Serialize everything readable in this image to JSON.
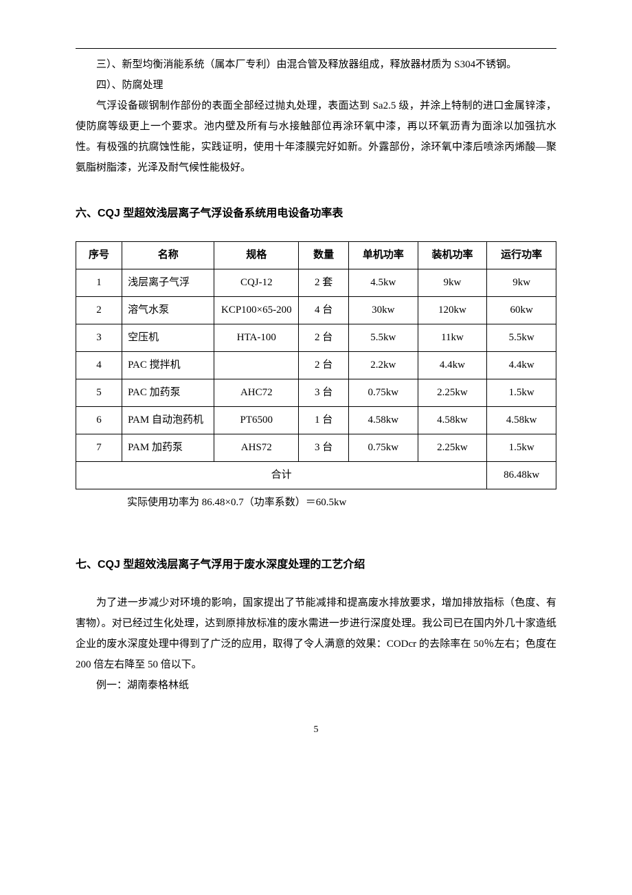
{
  "paragraphs": {
    "p1": "三）、新型均衡消能系统（属本厂专利）由混合管及释放器组成，释放器材质为 S304不锈钢。",
    "p2": "四）、防腐处理",
    "p3": "气浮设备碳钢制作部份的表面全部经过抛丸处理，表面达到 Sa2.5 级，并涂上特制的进口金属锌漆，使防腐等级更上一个要求。池内壁及所有与水接触部位再涂环氧中漆，再以环氧沥青为面涂以加强抗水性。有极强的抗腐蚀性能，实践证明，使用十年漆膜完好如新。外露部份，涂环氧中漆后喷涂丙烯酸—聚氨脂树脂漆，光泽及耐气候性能极好。"
  },
  "section6_title": "六、CQJ 型超效浅层离子气浮设备系统用电设备功率表",
  "table": {
    "headers": {
      "seq": "序号",
      "name": "名称",
      "spec": "规格",
      "qty": "数量",
      "unit_power": "单机功率",
      "installed_power": "装机功率",
      "run_power": "运行功率"
    },
    "rows": [
      {
        "seq": "1",
        "name": "浅层离子气浮",
        "spec": "CQJ-12",
        "qty": "2 套",
        "unit": "4.5kw",
        "installed": "9kw",
        "run": "9kw"
      },
      {
        "seq": "2",
        "name": "溶气水泵",
        "spec": "KCP100×65-200",
        "qty": "4 台",
        "unit": "30kw",
        "installed": "120kw",
        "run": "60kw"
      },
      {
        "seq": "3",
        "name": "空压机",
        "spec": "HTA-100",
        "qty": "2 台",
        "unit": "5.5kw",
        "installed": "11kw",
        "run": "5.5kw"
      },
      {
        "seq": "4",
        "name": "PAC 搅拌机",
        "spec": "",
        "qty": "2 台",
        "unit": "2.2kw",
        "installed": "4.4kw",
        "run": "4.4kw"
      },
      {
        "seq": "5",
        "name": "PAC 加药泵",
        "spec": "AHC72",
        "qty": "3 台",
        "unit": "0.75kw",
        "installed": "2.25kw",
        "run": "1.5kw"
      },
      {
        "seq": "6",
        "name": "PAM 自动泡药机",
        "spec": "PT6500",
        "qty": "1 台",
        "unit": "4.58kw",
        "installed": "4.58kw",
        "run": "4.58kw"
      },
      {
        "seq": "7",
        "name": "PAM 加药泵",
        "spec": "AHS72",
        "qty": "3 台",
        "unit": "0.75kw",
        "installed": "2.25kw",
        "run": "1.5kw"
      }
    ],
    "total_label": "合计",
    "total_value": "86.48kw"
  },
  "table_note": "实际使用功率为 86.48×0.7（功率系数）＝60.5kw",
  "section7_title": "七、CQJ 型超效浅层离子气浮用于废水深度处理的工艺介绍",
  "section7_body": {
    "p1": "为了进一步减少对环境的影响，国家提出了节能减排和提高废水排放要求，增加排放指标（色度、有害物）。对已经过生化处理，达到原排放标准的废水需进一步进行深度处理。我公司已在国内外几十家造纸企业的废水深度处理中得到了广泛的应用，取得了令人满意的效果：CODcr 的去除率在 50％左右；色度在 200 倍左右降至 50 倍以下。",
    "p2": "例一：湖南泰格林纸"
  },
  "page_number": "5"
}
